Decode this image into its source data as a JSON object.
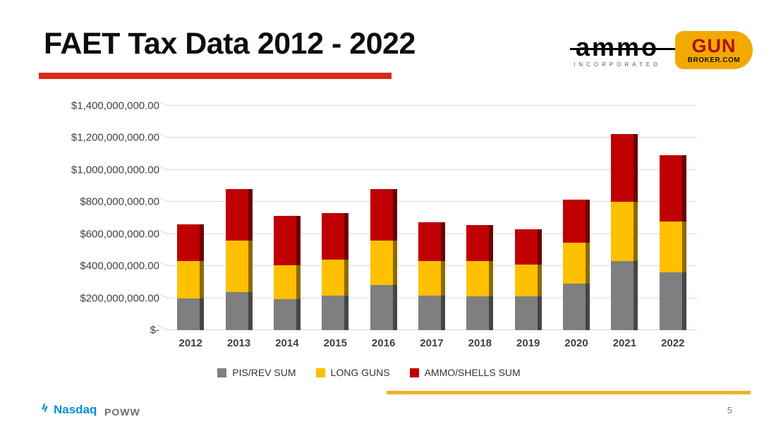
{
  "slide": {
    "title": "FAET Tax Data 2012 - 2022",
    "page_number": "5"
  },
  "logos": {
    "ammo": {
      "word": "ammo",
      "subtext": "INCORPORATED"
    },
    "gunbroker": {
      "gun": "GUN",
      "broker": "BROKER.COM"
    },
    "nasdaq": {
      "name": "Nasdaq",
      "ticker": "POWW"
    }
  },
  "colors": {
    "accent_red": "#DA291C",
    "accent_gold": "#F0B323",
    "nasdaq_blue": "#0092CF",
    "gunbroker_gold": "#F2A900",
    "bar_gray": "#7F7F7F",
    "bar_gold": "#FFC000",
    "bar_red": "#C00000"
  },
  "chart_data": {
    "type": "bar",
    "subtype": "stacked-3d",
    "title": "",
    "xlabel": "",
    "ylabel": "",
    "unit": "USD (values stored in millions)",
    "ylim": [
      0,
      1400
    ],
    "ytick_step": 200,
    "ytick_labels": [
      "$1,400,000,000.00",
      "$1,200,000,000.00",
      "$1,000,000,000.00",
      "$800,000,000.00",
      "$600,000,000.00",
      "$400,000,000.00",
      "$200,000,000.00",
      "$-"
    ],
    "categories": [
      "2012",
      "2013",
      "2014",
      "2015",
      "2016",
      "2017",
      "2018",
      "2019",
      "2020",
      "2021",
      "2022"
    ],
    "series": [
      {
        "name": "PIS/REV SUM",
        "color": "#7F7F7F",
        "values": [
          200,
          240,
          195,
          215,
          280,
          215,
          210,
          210,
          290,
          430,
          360
        ]
      },
      {
        "name": "LONG GUNS",
        "color": "#FFC000",
        "values": [
          230,
          320,
          210,
          225,
          280,
          215,
          220,
          200,
          255,
          370,
          320
        ]
      },
      {
        "name": "AMMO/SHELLS SUM",
        "color": "#C00000",
        "values": [
          230,
          320,
          310,
          290,
          320,
          245,
          225,
          220,
          270,
          425,
          410
        ]
      }
    ],
    "legend_position": "bottom",
    "grid": true
  }
}
